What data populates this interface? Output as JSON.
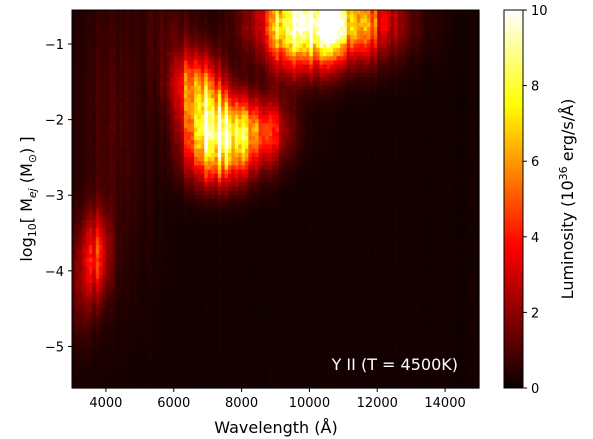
{
  "chart_data": {
    "type": "heatmap",
    "title": "",
    "xlabel": "Wavelength (Å)",
    "ylabel_parts": [
      "log",
      "10",
      "[ M",
      "ej",
      " (M",
      "⊙",
      ") ]"
    ],
    "xlim": [
      3000,
      15000
    ],
    "ylim": [
      -5.55,
      -0.55
    ],
    "xticks": [
      4000,
      6000,
      8000,
      10000,
      12000,
      14000
    ],
    "xtick_labels": [
      "4000",
      "6000",
      "8000",
      "10000",
      "12000",
      "14000"
    ],
    "yticks": [
      -1,
      -2,
      -3,
      -4,
      -5
    ],
    "ytick_labels": [
      "−1",
      "−2",
      "−3",
      "−4",
      "−5"
    ],
    "colormap": "hot",
    "colorbar": {
      "label_parts": [
        "Luminosity (10",
        "36",
        " erg/s/Å)"
      ],
      "range": [
        0,
        10
      ],
      "ticks": [
        0,
        2,
        4,
        6,
        8,
        10
      ],
      "tick_labels": [
        "0",
        "2",
        "4",
        "6",
        "8",
        "10"
      ]
    },
    "annotation": "Y II (T = 4500K)",
    "blobs": [
      {
        "x": 10500,
        "y": -0.7,
        "sx": 1200,
        "sy": 0.35,
        "amp": 9.5
      },
      {
        "x": 9600,
        "y": -0.9,
        "sx": 700,
        "sy": 0.4,
        "amp": 3.0
      },
      {
        "x": 7000,
        "y": -2.1,
        "sx": 500,
        "sy": 0.4,
        "amp": 7.5
      },
      {
        "x": 8200,
        "y": -2.15,
        "sx": 700,
        "sy": 0.3,
        "amp": 6.5
      },
      {
        "x": 6600,
        "y": -1.5,
        "sx": 500,
        "sy": 0.3,
        "amp": 4.0
      },
      {
        "x": 7500,
        "y": -2.6,
        "sx": 700,
        "sy": 0.25,
        "amp": 2.5
      },
      {
        "x": 3700,
        "y": -3.8,
        "sx": 300,
        "sy": 0.4,
        "amp": 3.5
      },
      {
        "x": 3300,
        "y": -4.2,
        "sx": 250,
        "sy": 0.5,
        "amp": 1.5
      },
      {
        "x": 4200,
        "y": -2.0,
        "sx": 800,
        "sy": 1.5,
        "amp": 0.8
      },
      {
        "x": 6000,
        "y": -0.8,
        "sx": 600,
        "sy": 0.4,
        "amp": 0.8
      }
    ]
  }
}
